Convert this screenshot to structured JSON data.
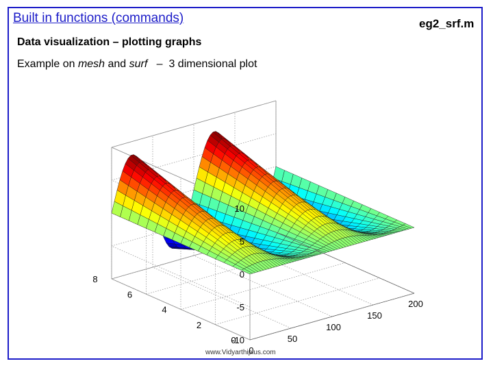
{
  "slide": {
    "title": "Built in functions (commands)",
    "filename": "eg2_srf.m",
    "subtitle": "Data visualization – plotting graphs",
    "example_prefix": "Example on ",
    "example_mesh": "mesh",
    "example_and": " and ",
    "example_surf": "surf",
    "example_suffix": "   –  3 dimensional plot",
    "watermark": "www.Vidyarthiplus.com"
  },
  "chart_data": {
    "type": "surface",
    "title": "",
    "xlabel": "",
    "ylabel": "",
    "zlabel": "",
    "x_ticks": [
      "0",
      "50",
      "100",
      "150",
      "200"
    ],
    "y_ticks": [
      "0",
      "2",
      "4",
      "6",
      "8"
    ],
    "z_ticks": [
      "10",
      "5",
      "0",
      "-5",
      "-10"
    ],
    "xlim": [
      0,
      200
    ],
    "ylim": [
      0,
      8
    ],
    "zlim": [
      -10,
      10
    ],
    "grid": true,
    "colormap": "jet",
    "surface_shape": "z = y·sin(2π·x/100), sine waves along x with amplitude growing with y",
    "x_period": 100,
    "z_min": -8,
    "z_max": 8
  }
}
